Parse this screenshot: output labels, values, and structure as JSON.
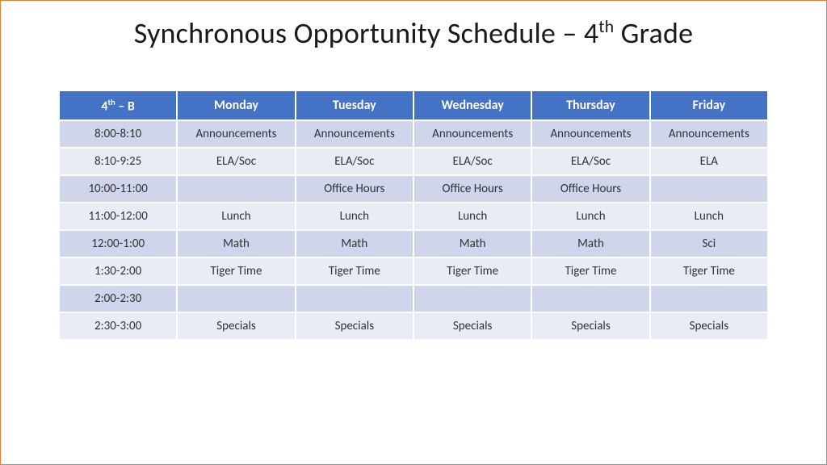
{
  "title": {
    "prefix": "Synchronous Opportunity Schedule – 4",
    "sup": "th",
    "suffix": " Grade",
    "fontsize": 36,
    "color": "#1a1a1a"
  },
  "table": {
    "header_bg": "#4472c4",
    "header_fg": "#ffffff",
    "row_bg_even": "#cfd5ea",
    "row_bg_odd": "#e9ebf5",
    "border_color": "#ffffff",
    "cell_fontsize": 15,
    "header_fontsize": 16,
    "small_fontsize": 13,
    "columns": [
      {
        "label_prefix": "4",
        "label_sup": "th",
        "label_suffix": " – B"
      },
      {
        "label": "Monday"
      },
      {
        "label": "Tuesday"
      },
      {
        "label": "Wednesday"
      },
      {
        "label": "Thursday"
      },
      {
        "label": "Friday"
      }
    ],
    "rows": [
      {
        "time": "8:00-8:10",
        "cells": [
          "Announcements",
          "Announcements",
          "Announcements",
          "Announcements",
          "Announcements"
        ],
        "small": true
      },
      {
        "time": "8:10-9:25",
        "cells": [
          "ELA/Soc",
          "ELA/Soc",
          "ELA/Soc",
          "ELA/Soc",
          "ELA"
        ]
      },
      {
        "time": "10:00-11:00",
        "cells": [
          "",
          "Office Hours",
          "Office Hours",
          "Office Hours",
          ""
        ]
      },
      {
        "time": "11:00-12:00",
        "cells": [
          "Lunch",
          "Lunch",
          "Lunch",
          "Lunch",
          "Lunch"
        ]
      },
      {
        "time": "12:00-1:00",
        "cells": [
          "Math",
          "Math",
          "Math",
          "Math",
          "Sci"
        ]
      },
      {
        "time": "1:30-2:00",
        "cells": [
          "Tiger Time",
          "Tiger Time",
          "Tiger Time",
          "Tiger Time",
          "Tiger Time"
        ]
      },
      {
        "time": "2:00-2:30",
        "cells": [
          "",
          "",
          "",
          "",
          ""
        ]
      },
      {
        "time": "2:30-3:00",
        "cells": [
          "Specials",
          "Specials",
          "Specials",
          "Specials",
          "Specials"
        ]
      }
    ]
  }
}
